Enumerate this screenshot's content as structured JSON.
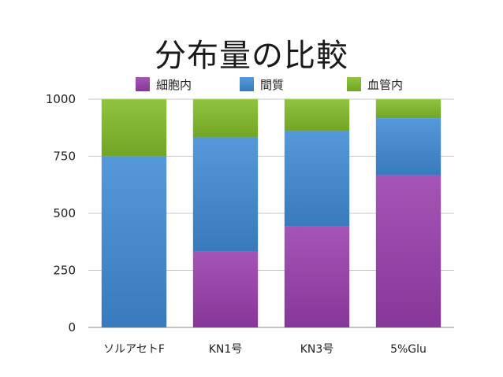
{
  "chart_data": {
    "type": "bar",
    "stacked": true,
    "title": "分布量の比較",
    "categories": [
      "ソルアセトF",
      "KN1号",
      "KN3号",
      "5%Glu"
    ],
    "series": [
      {
        "name": "細胞内",
        "color": "#8e3fa0",
        "values": [
          0,
          333,
          444,
          667
        ]
      },
      {
        "name": "間質",
        "color": "#3f83c4",
        "values": [
          750,
          500,
          417,
          250
        ]
      },
      {
        "name": "血管内",
        "color": "#79ad2a",
        "values": [
          250,
          167,
          139,
          83
        ]
      }
    ],
    "ylim": [
      0,
      1000
    ],
    "yticks": [
      0,
      250,
      500,
      750,
      1000
    ],
    "grid": true,
    "legend_position": "top"
  }
}
